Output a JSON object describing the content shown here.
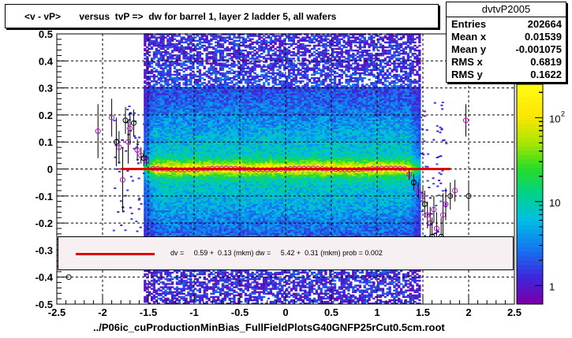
{
  "chart_data": {
    "type": "heatmap",
    "title": "<v - vP>       versus  tvP =>  dw for barrel 1, layer 2 ladder 5, all wafers",
    "xlabel": "../P06ic_cuProductionMinBias_FullFieldPlotsG40GNFP25rCut0.5cm.root",
    "ylabel": "",
    "xlim": [
      -2.5,
      2.5
    ],
    "ylim": [
      -0.5,
      0.5
    ],
    "x_ticks": [
      "-2.5",
      "-2",
      "-1.5",
      "-1",
      "-0.5",
      "0",
      "0.5",
      "1",
      "1.5",
      "2",
      "2.5"
    ],
    "y_ticks": [
      "-0.5",
      "-0.4",
      "-0.3",
      "-0.2",
      "-0.1",
      "0",
      "0.1",
      "0.2",
      "0.3",
      "0.4",
      "0.5"
    ],
    "grid": true,
    "color_scale": {
      "scale": "log",
      "tick_labels": [
        "1",
        "10",
        "10^2"
      ],
      "tick_values": [
        1,
        10,
        100
      ],
      "range": [
        0.6,
        250
      ]
    },
    "density": {
      "x_range": [
        -1.55,
        1.45
      ],
      "y_sigma": 0.16,
      "core_sigma": 0.02
    },
    "profile_points": {
      "x": [
        -2.37,
        -2.05,
        -1.9,
        -1.85,
        -1.82,
        -1.78,
        -1.75,
        -1.72,
        -1.7,
        -1.66,
        -1.62,
        -1.58,
        -1.55,
        -1.52,
        1.35,
        1.4,
        1.45,
        1.5,
        1.52,
        1.55,
        1.58,
        1.6,
        1.62,
        1.65,
        1.7,
        1.72,
        1.75,
        1.8,
        1.85,
        1.97,
        2.0
      ],
      "y": [
        -0.4,
        0.14,
        0.19,
        0.1,
        0.08,
        -0.04,
        0.18,
        0.1,
        0.15,
        0.17,
        0.07,
        0.05,
        0.04,
        0.03,
        -0.02,
        -0.05,
        -0.08,
        -0.1,
        -0.13,
        -0.17,
        -0.2,
        -0.25,
        -0.15,
        -0.22,
        -0.25,
        -0.17,
        -0.13,
        -0.1,
        -0.08,
        0.18,
        -0.1
      ],
      "err": [
        0.0,
        0.1,
        0.07,
        0.09,
        0.06,
        0.12,
        0.05,
        0.08,
        0.06,
        0.05,
        0.04,
        0.03,
        0.03,
        0.02,
        0.02,
        0.03,
        0.03,
        0.04,
        0.05,
        0.05,
        0.06,
        0.07,
        0.05,
        0.06,
        0.07,
        0.08,
        0.06,
        0.05,
        0.04,
        0.06,
        0.05
      ]
    },
    "fit_line": {
      "x": [
        -1.8,
        1.8
      ],
      "y": [
        0.0,
        0.0
      ]
    }
  },
  "stats": {
    "name": "dvtvP2005",
    "rows": [
      {
        "key": "Entries",
        "value": "202664"
      },
      {
        "key": "Mean x",
        "value": "0.01539"
      },
      {
        "key": "Mean y",
        "value": "-0.001075"
      },
      {
        "key": "RMS x",
        "value": "0.6819"
      },
      {
        "key": "RMS y",
        "value": "0.1622"
      }
    ]
  },
  "fit_legend": {
    "text": "dv =     0.59 +  0.13 (mkm) dw =     5.42 +  0.31 (mkm) prob = 0.002"
  },
  "colors": {
    "fit": "#e00000",
    "profile": "#cc00cc",
    "frame": "#000000"
  }
}
